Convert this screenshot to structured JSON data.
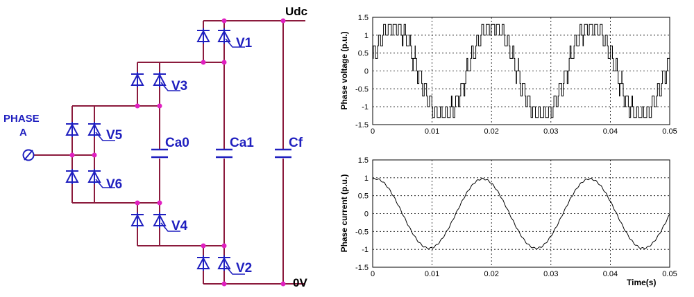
{
  "circuit": {
    "top_rail_label": "Udc",
    "bottom_rail_label": "0V",
    "phase_label_line1": "PHASE",
    "phase_label_line2": "A",
    "switches": {
      "v1": "V1",
      "v2": "V2",
      "v3": "V3",
      "v4": "V4",
      "v5": "V5",
      "v6": "V6"
    },
    "capacitors": {
      "ca0": "Ca0",
      "ca1": "Ca1",
      "cf": "Cf"
    },
    "colors": {
      "wire": "#8b1a3c",
      "device": "#1f1fbf",
      "node": "#e020c0",
      "rail_label": "#000000"
    }
  },
  "chart_data": [
    {
      "type": "line",
      "name": "phase-voltage-chart",
      "ylabel": "Phase voltage (p.u.)",
      "xlabel": "",
      "xlim": [
        0,
        0.05
      ],
      "ylim": [
        -1.5,
        1.5
      ],
      "x_ticks": [
        "0",
        "0.01",
        "0.02",
        "0.03",
        "0.04",
        "0.05"
      ],
      "y_ticks": [
        "1.5",
        "1",
        "0.5",
        "0",
        "-0.5",
        "-1",
        "-1.5"
      ],
      "grid": true,
      "waveform": {
        "shape": "multilevel staircase sine",
        "frequency_hz": 60,
        "amplitude_pu": 1.3,
        "levels": [
          -1.3,
          -1.0,
          -0.7,
          -0.35,
          0,
          0.35,
          0.7,
          1.0,
          1.3
        ]
      }
    },
    {
      "type": "line",
      "name": "phase-current-chart",
      "ylabel": "Phase current (p.u.)",
      "xlabel": "Time(s)",
      "xlim": [
        0,
        0.05
      ],
      "ylim": [
        -1.5,
        1.5
      ],
      "x_ticks": [
        "0",
        "0.01",
        "0.02",
        "0.03",
        "0.04",
        "0.05"
      ],
      "y_ticks": [
        "1.5",
        "1",
        "0.5",
        "0",
        "-0.5",
        "-1",
        "-1.5"
      ],
      "grid": true,
      "waveform": {
        "shape": "sine with small ripple",
        "frequency_hz": 55.5,
        "amplitude_pu": 0.97,
        "phase_peak_s": 0.0005
      }
    }
  ]
}
